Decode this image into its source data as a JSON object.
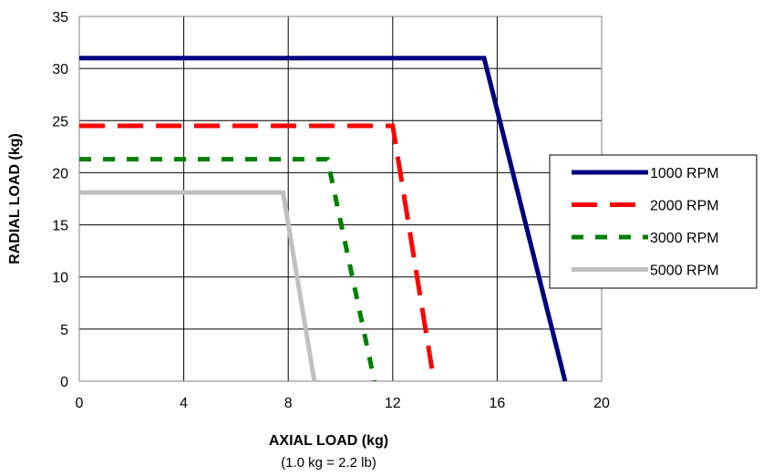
{
  "chart_data": {
    "type": "line",
    "title": "",
    "xlabel": "AXIAL LOAD (kg)",
    "xlabel_note": "(1.0 kg = 2.2 lb)",
    "ylabel": "RADIAL LOAD (kg)",
    "xlim": [
      0,
      20
    ],
    "ylim": [
      0,
      35
    ],
    "xticks": [
      0,
      4,
      8,
      12,
      16,
      20
    ],
    "yticks": [
      0,
      5,
      10,
      15,
      20,
      25,
      30,
      35
    ],
    "grid": true,
    "legend_position": "right",
    "series": [
      {
        "name": "1000 RPM",
        "color": "#000080",
        "dash": "solid",
        "x": [
          0,
          15.5,
          18.6
        ],
        "y": [
          31,
          31,
          0
        ]
      },
      {
        "name": "2000 RPM",
        "color": "#ff0000",
        "dash": "long-dash",
        "x": [
          0,
          12,
          13.5
        ],
        "y": [
          24.5,
          24.5,
          1.2
        ]
      },
      {
        "name": "3000 RPM",
        "color": "#008000",
        "dash": "short-dash",
        "x": [
          0,
          9.5,
          11.3
        ],
        "y": [
          21.3,
          21.3,
          0
        ]
      },
      {
        "name": "5000 RPM",
        "color": "#c0c0c0",
        "dash": "solid",
        "x": [
          0,
          7.8,
          9.0
        ],
        "y": [
          18.1,
          18.1,
          0
        ]
      }
    ]
  }
}
